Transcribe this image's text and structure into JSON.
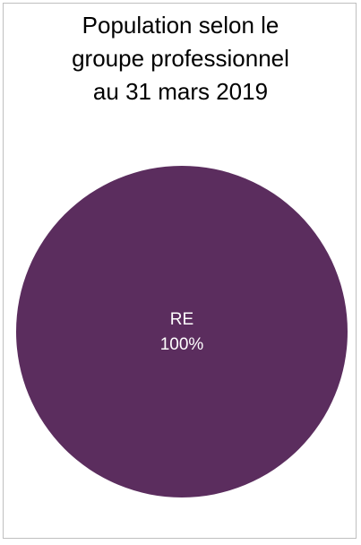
{
  "chart_data": {
    "type": "pie",
    "title_lines": [
      "Population selon le",
      "groupe professionnel",
      "au 31 mars 2019"
    ],
    "categories": [
      "RE"
    ],
    "values": [
      100
    ],
    "data_labels": [
      {
        "category": "RE",
        "value_label": "100%"
      }
    ],
    "colors": [
      "#5b2d5e"
    ],
    "legend": "none"
  }
}
